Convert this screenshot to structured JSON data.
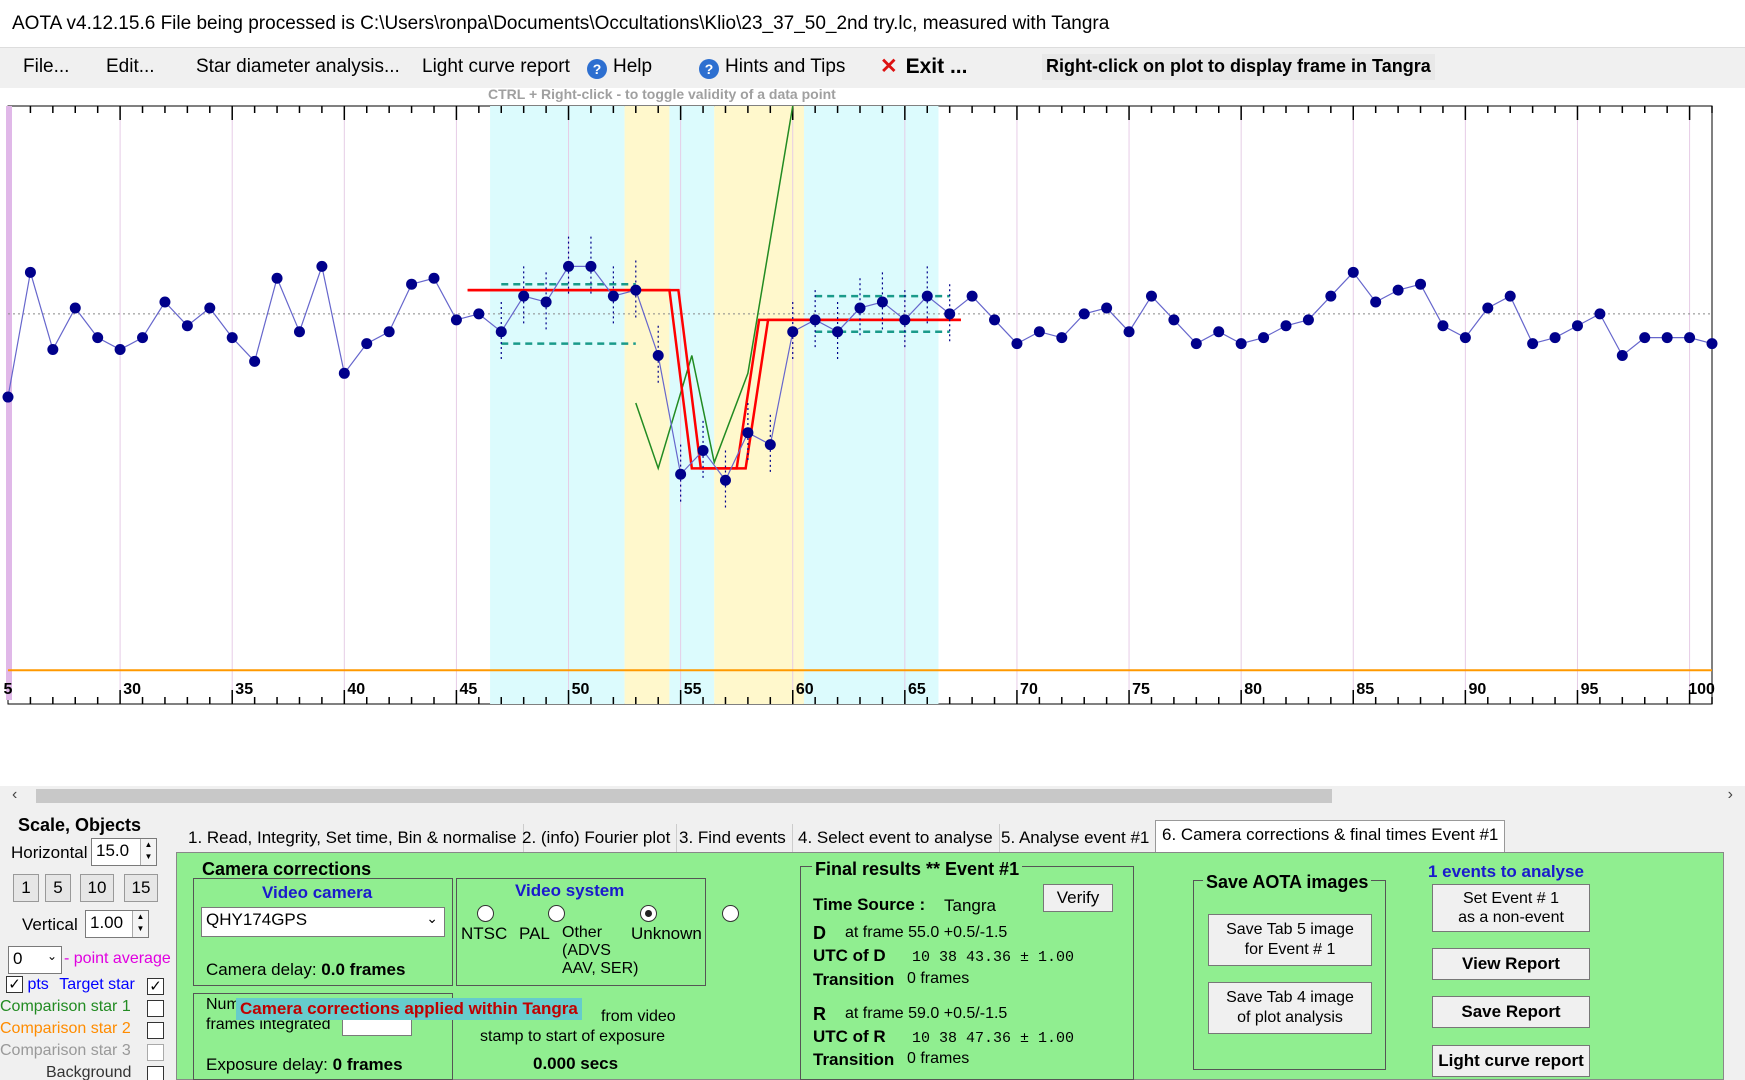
{
  "window": {
    "title": "AOTA v4.12.15.6    File being processed is C:\\Users\\ronpa\\Documents\\Occultations\\Klio\\23_37_50_2nd try.lc, measured with Tangra"
  },
  "menu": {
    "file": "File...",
    "edit": "Edit...",
    "star_diameter": "Star diameter analysis...",
    "light_curve_report": "Light curve report",
    "help": "Help",
    "hints": "Hints and Tips",
    "exit": "Exit ..."
  },
  "hints": {
    "right_click": "Right-click on plot to display frame in Tangra",
    "ctrl_right_click": "CTRL + Right-click  -  to toggle validity of a data point"
  },
  "colors": {
    "data_line": "#6666cc",
    "data_point": "#00008b",
    "model_line": "#ff0000",
    "cyan_band": "#dcfbfd",
    "yellow_band": "#fff8cc",
    "baseline": "#ff9900",
    "green_panel": "#90ee90",
    "fit_line": "#228b22"
  },
  "chart_data": {
    "type": "line",
    "x_ticks": [
      "5",
      "30",
      "35",
      "40",
      "45",
      "50",
      "55",
      "60",
      "65",
      "70",
      "75",
      "80",
      "85",
      "90",
      "95",
      "100"
    ],
    "xlim": [
      25,
      101
    ],
    "ylim": [
      0,
      1
    ],
    "x": [
      25,
      26,
      27,
      28,
      29,
      30,
      31,
      32,
      33,
      34,
      35,
      36,
      37,
      38,
      39,
      40,
      41,
      42,
      43,
      44,
      45,
      46,
      47,
      48,
      49,
      50,
      51,
      52,
      53,
      54,
      55,
      56,
      57,
      58,
      59,
      60,
      61,
      62,
      63,
      64,
      65,
      66,
      67,
      68,
      69,
      70,
      71,
      72,
      73,
      74,
      75,
      76,
      77,
      78,
      79,
      80,
      81,
      82,
      83,
      84,
      85,
      86,
      87,
      88,
      89,
      90,
      91,
      92,
      93,
      94,
      95,
      96,
      97,
      98,
      99,
      100,
      101
    ],
    "y": [
      0.51,
      0.72,
      0.59,
      0.66,
      0.61,
      0.59,
      0.61,
      0.67,
      0.63,
      0.66,
      0.61,
      0.57,
      0.71,
      0.62,
      0.73,
      0.55,
      0.6,
      0.62,
      0.7,
      0.71,
      0.64,
      0.65,
      0.62,
      0.68,
      0.67,
      0.73,
      0.73,
      0.68,
      0.69,
      0.58,
      0.38,
      0.42,
      0.37,
      0.45,
      0.43,
      0.62,
      0.64,
      0.62,
      0.66,
      0.67,
      0.64,
      0.68,
      0.65,
      0.68,
      0.64,
      0.6,
      0.62,
      0.61,
      0.65,
      0.66,
      0.62,
      0.68,
      0.64,
      0.6,
      0.62,
      0.6,
      0.61,
      0.63,
      0.64,
      0.68,
      0.72,
      0.67,
      0.69,
      0.7,
      0.63,
      0.61,
      0.66,
      0.68,
      0.6,
      0.61,
      0.63,
      0.65,
      0.58,
      0.61,
      0.61,
      0.61,
      0.6
    ],
    "d_frame": 55.0,
    "r_frame": 59.0,
    "baseline_level": 0.65,
    "event_level": 0.42,
    "grid": true
  },
  "scale": {
    "title": "Scale,  Objects",
    "horizontal_label": "Horizontal",
    "horizontal_value": "15.0",
    "buttons": [
      "1",
      "5",
      "10",
      "15"
    ],
    "vertical_label": "Vertical",
    "vertical_value": "1.00",
    "point_avg_value": "0",
    "point_avg_label": "- point average",
    "objects": [
      {
        "label": "Target star",
        "color": "#0000ff",
        "checked": true
      },
      {
        "label": "Comparison star 1",
        "color": "#228b22",
        "checked": false
      },
      {
        "label": "Comparison star 2",
        "color": "#ff8c00",
        "checked": false
      },
      {
        "label": "Comparison star 3",
        "color": "#999999",
        "checked": false
      },
      {
        "label": "Background",
        "color": "#333333",
        "checked": false
      }
    ],
    "pts_label": "pts"
  },
  "tabs": [
    "1.  Read, Integrity, Set time, Bin & normalise",
    "2.  (info)  Fourier plot",
    "3.  Find events",
    "4.  Select event to analyse",
    "5.  Analyse event #1",
    "6.  Camera corrections & final times Event #1"
  ],
  "camera": {
    "title": "Camera corrections",
    "video_camera_label": "Video camera",
    "camera_model": "QHY174GPS",
    "camera_delay_label": "Camera delay:",
    "camera_delay_value": "0.0 frames",
    "video_system_label": "Video system",
    "options": [
      "NTSC",
      "PAL",
      "Other\n(ADVS\nAAV, SER)",
      "Unknown"
    ],
    "applied_banner": "Camera corrections applied within Tangra",
    "num_frames_label": "Num",
    "frames_integrated_label": "frames integrated",
    "from_video_label": "from video",
    "stamp_label": "stamp to start of exposure",
    "exposure_delay_label": "Exposure delay:",
    "exposure_delay_value": "0 frames",
    "secs_value": "0.000 secs"
  },
  "final": {
    "title": "Final results  **  Event #1",
    "time_source_label": "Time Source :",
    "time_source_value": "Tangra",
    "verify": "Verify",
    "d_label": "D",
    "d_frame": "at frame 55.0  +0.5/-1.5",
    "utc_d_label": "UTC of D",
    "utc_d_value": "10 38 43.36  ± 1.00",
    "transition_label": "Transition",
    "transition_d_value": "0 frames",
    "r_label": "R",
    "r_frame": "at frame 59.0  +0.5/-1.5",
    "utc_r_label": "UTC of R",
    "utc_r_value": "10 38 47.36  ± 1.00",
    "transition_r_value": "0 frames"
  },
  "save": {
    "title": "Save AOTA images",
    "tab5_btn": "Save Tab 5 image\nfor Event # 1",
    "tab4_btn": "Save Tab 4 image\nof plot analysis"
  },
  "right": {
    "events_label": "1  events to analyse",
    "set_event_btn": "Set Event # 1\nas a non-event",
    "view_report": "View Report",
    "save_report": "Save Report",
    "light_curve_report": "Light curve report"
  }
}
